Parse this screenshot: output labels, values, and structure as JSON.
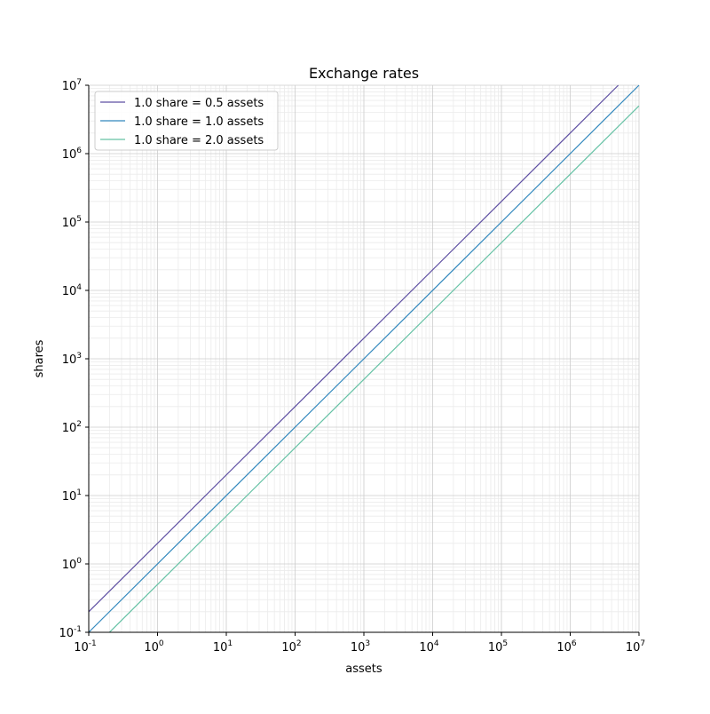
{
  "chart_data": {
    "type": "line",
    "title": "Exchange rates",
    "xlabel": "assets",
    "ylabel": "shares",
    "xscale": "log",
    "yscale": "log",
    "xlim": [
      0.1,
      10000000
    ],
    "ylim": [
      0.1,
      10000000
    ],
    "grid": "major and minor",
    "legend_placement": "upper-left",
    "tick_exponents": [
      -1,
      0,
      1,
      2,
      3,
      4,
      5,
      6,
      7
    ],
    "series": [
      {
        "name": "1.0 share = 0.5 assets",
        "rate": 0.5,
        "color": "#5e4fa2",
        "x": [
          0.1,
          5000000
        ],
        "y": [
          0.2,
          10000000
        ]
      },
      {
        "name": "1.0 share = 1.0 assets",
        "rate": 1.0,
        "color": "#3288bd",
        "x": [
          0.1,
          10000000
        ],
        "y": [
          0.1,
          10000000
        ]
      },
      {
        "name": "1.0 share = 2.0 assets",
        "rate": 2.0,
        "color": "#66c2a5",
        "x": [
          0.2,
          10000000
        ],
        "y": [
          0.1,
          5000000
        ]
      }
    ]
  }
}
